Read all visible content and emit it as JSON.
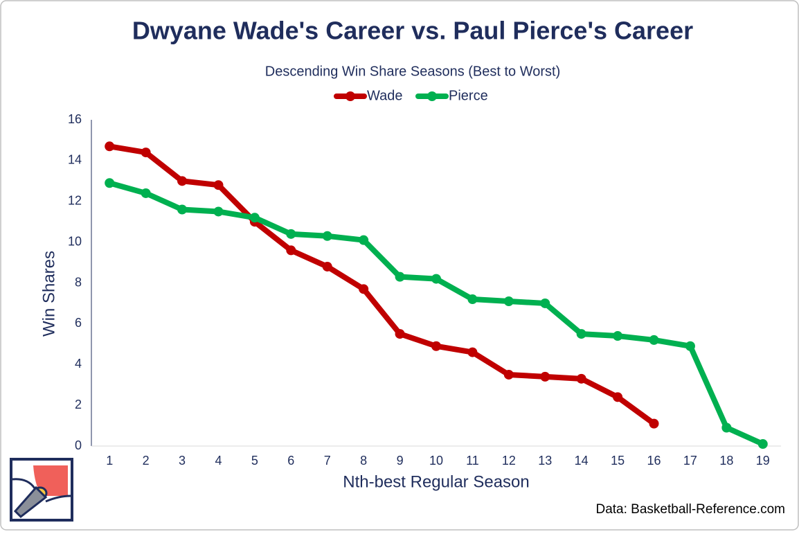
{
  "chart_data": {
    "type": "line",
    "title": "Dwyane Wade's Career vs. Paul Pierce's Career",
    "subtitle": "Descending Win Share Seasons (Best to Worst)",
    "x_label": "Nth-best Regular Season",
    "y_label": "Win Shares",
    "source": "Data: Basketball-Reference.com",
    "categories": [
      "1",
      "2",
      "3",
      "4",
      "5",
      "6",
      "7",
      "8",
      "9",
      "10",
      "11",
      "12",
      "13",
      "14",
      "15",
      "16",
      "17",
      "18",
      "19"
    ],
    "series": [
      {
        "name": "Wade",
        "color": "#c00000",
        "values": [
          14.7,
          14.4,
          13.0,
          12.8,
          11.0,
          9.6,
          8.8,
          7.7,
          5.5,
          4.9,
          4.6,
          3.5,
          3.4,
          3.3,
          2.4,
          1.1,
          null,
          null,
          null
        ]
      },
      {
        "name": "Pierce",
        "color": "#00b050",
        "values": [
          12.9,
          12.4,
          11.6,
          11.5,
          11.2,
          10.4,
          10.3,
          10.1,
          8.3,
          8.2,
          7.2,
          7.1,
          7.0,
          5.5,
          5.4,
          5.2,
          4.9,
          0.9,
          0.1
        ]
      }
    ],
    "ylim": [
      0,
      16
    ],
    "yticks": [
      0,
      2,
      4,
      6,
      8,
      10,
      12,
      14,
      16
    ],
    "grid": false,
    "legend": "top"
  }
}
